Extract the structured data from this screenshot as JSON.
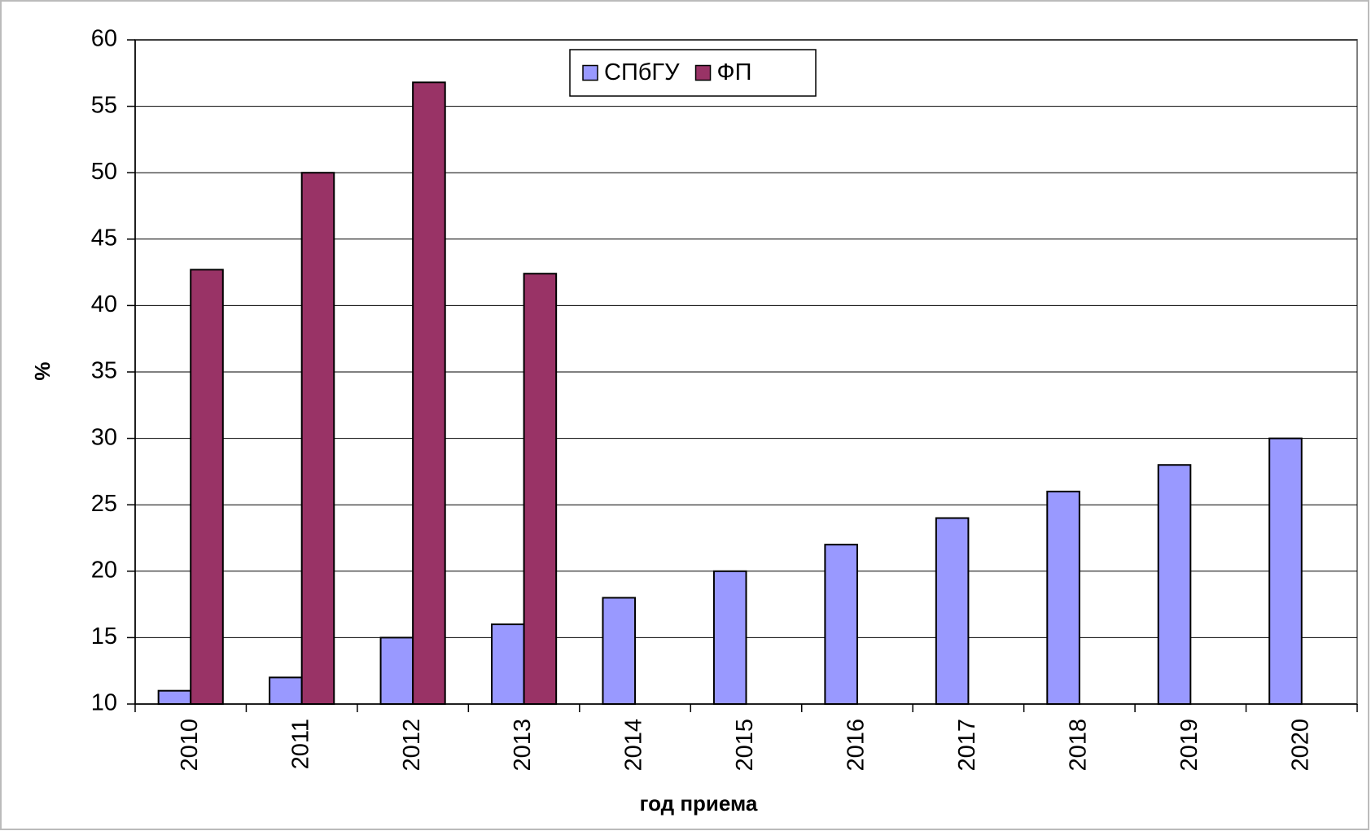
{
  "chart_data": {
    "type": "bar",
    "categories": [
      "2010",
      "2011",
      "2012",
      "2013",
      "2014",
      "2015",
      "2016",
      "2017",
      "2018",
      "2019",
      "2020"
    ],
    "series": [
      {
        "name": "СПбГУ",
        "color": "#9999ff",
        "values": [
          11,
          12,
          15,
          16,
          18,
          20,
          22,
          24,
          26,
          28,
          30
        ]
      },
      {
        "name": "ФП",
        "color": "#993366",
        "values": [
          42.7,
          50,
          56.8,
          42.4,
          null,
          null,
          null,
          null,
          null,
          null,
          null
        ]
      }
    ],
    "xlabel": "год приема",
    "ylabel": "%",
    "ylim": [
      10,
      60
    ],
    "yticks": [
      10,
      15,
      20,
      25,
      30,
      35,
      40,
      45,
      50,
      55,
      60
    ],
    "grid": true,
    "legend": "top"
  }
}
